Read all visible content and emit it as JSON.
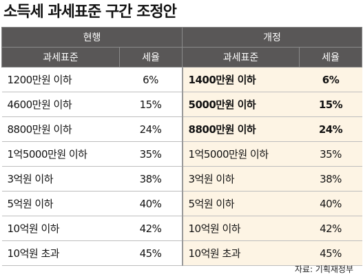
{
  "title": "소득세 과세표준 구간 조정안",
  "table": {
    "group_headers": [
      "현행",
      "개정"
    ],
    "column_headers": [
      "과세표준",
      "세율",
      "과세표준",
      "세율"
    ],
    "rows": [
      {
        "current_bracket": "1200만원 이하",
        "current_rate": "6%",
        "revised_bracket": "1400만원 이하",
        "revised_rate": "6%",
        "changed": true
      },
      {
        "current_bracket": "4600만원 이하",
        "current_rate": "15%",
        "revised_bracket": "5000만원 이하",
        "revised_rate": "15%",
        "changed": true
      },
      {
        "current_bracket": "8800만원 이하",
        "current_rate": "24%",
        "revised_bracket": "8800만원 이하",
        "revised_rate": "24%",
        "changed": true
      },
      {
        "current_bracket": "1억5000만원 이하",
        "current_rate": "35%",
        "revised_bracket": "1억5000만원 이하",
        "revised_rate": "35%",
        "changed": false
      },
      {
        "current_bracket": "3억원 이하",
        "current_rate": "38%",
        "revised_bracket": "3억원 이하",
        "revised_rate": "38%",
        "changed": false
      },
      {
        "current_bracket": "5억원 이하",
        "current_rate": "40%",
        "revised_bracket": "5억원 이하",
        "revised_rate": "40%",
        "changed": false
      },
      {
        "current_bracket": "10억원 이하",
        "current_rate": "42%",
        "revised_bracket": "10억원 이하",
        "revised_rate": "42%",
        "changed": false
      },
      {
        "current_bracket": "10억원 초과",
        "current_rate": "45%",
        "revised_bracket": "10억원 초과",
        "revised_rate": "45%",
        "changed": false
      }
    ]
  },
  "source": "자료: 기획재정부"
}
